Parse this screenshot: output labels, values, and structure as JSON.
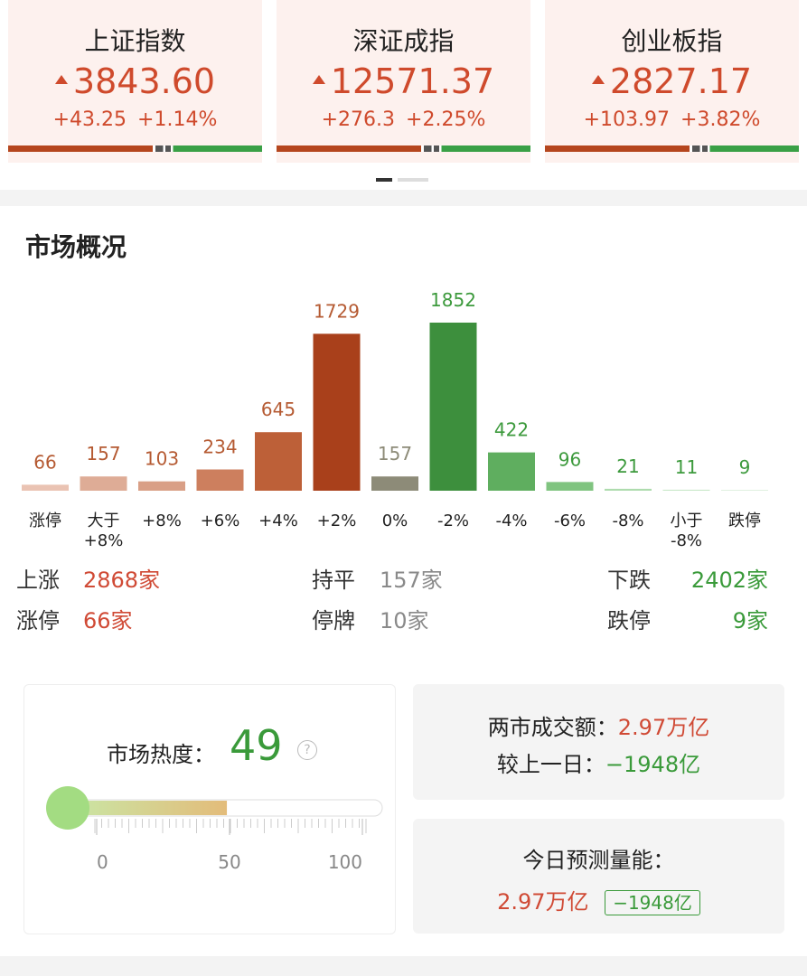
{
  "indices": [
    {
      "name": "上证指数",
      "value": "3843.60",
      "change": "+43.25",
      "change_pct": "+1.14%"
    },
    {
      "name": "深证成指",
      "value": "12571.37",
      "change": "+276.3",
      "change_pct": "+2.25%"
    },
    {
      "name": "创业板指",
      "value": "2827.17",
      "change": "+103.97",
      "change_pct": "+3.82%"
    }
  ],
  "chart_data": {
    "type": "bar",
    "title": "市场概况",
    "categories": [
      "涨停",
      "大于\n+8%",
      "+8%",
      "+6%",
      "+4%",
      "+2%",
      "0%",
      "-2%",
      "-4%",
      "-6%",
      "-8%",
      "小于\n-8%",
      "跌停"
    ],
    "values": [
      66,
      157,
      103,
      234,
      645,
      1729,
      157,
      1852,
      422,
      96,
      21,
      11,
      9
    ],
    "colors": [
      "#eac3b3",
      "#deac96",
      "#d99f86",
      "#cd7f5e",
      "#bd6038",
      "#a9401b",
      "#8d8b78",
      "#3d8f3d",
      "#5fae5f",
      "#80c480",
      "#aedcae",
      "#c9e8c9",
      "#dcefdc"
    ],
    "label_colors": [
      "#b55a32",
      "#b55a32",
      "#b55a32",
      "#b55a32",
      "#b55a32",
      "#b55a32",
      "#8d8b78",
      "#3d9a3d",
      "#3d9a3d",
      "#3d9a3d",
      "#3d9a3d",
      "#3d9a3d",
      "#3d9a3d"
    ]
  },
  "summary": [
    [
      {
        "label": "上涨",
        "value": "2868家"
      },
      {
        "label": "持平",
        "value": "157家"
      },
      {
        "label": "下跌",
        "value": "2402家"
      }
    ],
    [
      {
        "label": "涨停",
        "value": "66家"
      },
      {
        "label": "停牌",
        "value": "10家"
      },
      {
        "label": "跌停",
        "value": "9家"
      }
    ]
  ],
  "heat": {
    "label": "市场热度：",
    "value": 49,
    "range": [
      0,
      100
    ],
    "ticks": [
      0,
      50,
      100
    ]
  },
  "turnover": {
    "label": "两市成交额：",
    "value": "2.97万亿",
    "diff_label": "较上一日：",
    "diff": "−1948亿"
  },
  "forecast": {
    "label": "今日预测量能：",
    "value": "2.97万亿",
    "diff": "−1948亿"
  }
}
